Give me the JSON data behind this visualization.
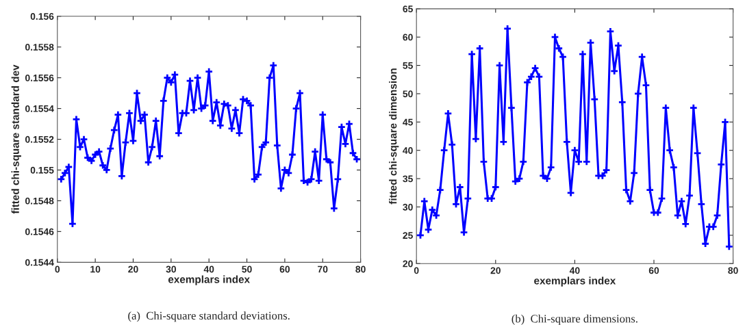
{
  "chart_data": [
    {
      "type": "line",
      "xlabel": "exemplars index",
      "ylabel": "fitted chi-square standard dev",
      "annotations": [
        "(a)  Chi-square standard deviations."
      ],
      "marker": "cross",
      "line_style": "solid",
      "grid": false,
      "legend": false,
      "x": [
        1,
        2,
        3,
        4,
        5,
        6,
        7,
        8,
        9,
        10,
        11,
        12,
        13,
        14,
        15,
        16,
        17,
        18,
        19,
        20,
        21,
        22,
        23,
        24,
        25,
        26,
        27,
        28,
        29,
        30,
        31,
        32,
        33,
        34,
        35,
        36,
        37,
        38,
        39,
        40,
        41,
        42,
        43,
        44,
        45,
        46,
        47,
        48,
        49,
        50,
        51,
        52,
        53,
        54,
        55,
        56,
        57,
        58,
        59,
        60,
        61,
        62,
        63,
        64,
        65,
        66,
        67,
        68,
        69,
        70,
        71,
        72,
        73,
        74,
        75,
        76,
        77,
        78,
        79
      ],
      "series": [
        {
          "color": "#0000ff",
          "values": [
            0.15494,
            0.15498,
            0.15502,
            0.15465,
            0.15533,
            0.15515,
            0.1552,
            0.15508,
            0.15506,
            0.1551,
            0.15512,
            0.15503,
            0.155,
            0.15514,
            0.15526,
            0.15536,
            0.15496,
            0.15518,
            0.15537,
            0.15519,
            0.1555,
            0.15532,
            0.15536,
            0.15505,
            0.15515,
            0.15532,
            0.15509,
            0.15545,
            0.1556,
            0.15557,
            0.15562,
            0.15524,
            0.15537,
            0.15537,
            0.15558,
            0.15539,
            0.1556,
            0.1554,
            0.15542,
            0.15564,
            0.15532,
            0.15544,
            0.15529,
            0.15543,
            0.15542,
            0.15527,
            0.15539,
            0.15524,
            0.15546,
            0.15545,
            0.15542,
            0.15494,
            0.15497,
            0.15515,
            0.15518,
            0.1556,
            0.15568,
            0.15516,
            0.15488,
            0.155,
            0.15498,
            0.1551,
            0.1554,
            0.1555,
            0.15493,
            0.15492,
            0.15494,
            0.15512,
            0.15493,
            0.15536,
            0.15507,
            0.15505,
            0.15475,
            0.15494,
            0.15528,
            0.15517,
            0.1553,
            0.15511,
            0.15507
          ]
        }
      ],
      "xlim": [
        0,
        80
      ],
      "xticks": [
        0,
        10,
        20,
        30,
        40,
        50,
        60,
        70,
        80
      ],
      "ylim": [
        0.1544,
        0.156
      ],
      "yticks": [
        0.1544,
        0.1546,
        0.1548,
        0.155,
        0.1552,
        0.1554,
        0.1556,
        0.1558,
        0.156
      ]
    },
    {
      "type": "line",
      "xlabel": "exemplars index",
      "ylabel": "fitted chi-square dimension",
      "annotations": [
        "(b)  Chi-square dimensions."
      ],
      "marker": "cross",
      "line_style": "solid",
      "grid": false,
      "legend": false,
      "x": [
        1,
        2,
        3,
        4,
        5,
        6,
        7,
        8,
        9,
        10,
        11,
        12,
        13,
        14,
        15,
        16,
        17,
        18,
        19,
        20,
        21,
        22,
        23,
        24,
        25,
        26,
        27,
        28,
        29,
        30,
        31,
        32,
        33,
        34,
        35,
        36,
        37,
        38,
        39,
        40,
        41,
        42,
        43,
        44,
        45,
        46,
        47,
        48,
        49,
        50,
        51,
        52,
        53,
        54,
        55,
        56,
        57,
        58,
        59,
        60,
        61,
        62,
        63,
        64,
        65,
        66,
        67,
        68,
        69,
        70,
        71,
        72,
        73,
        74,
        75,
        76,
        77,
        78,
        79
      ],
      "series": [
        {
          "color": "#0000ff",
          "values": [
            25,
            31,
            26,
            29.5,
            28.5,
            33,
            40,
            46.5,
            41,
            30.5,
            33.5,
            25.5,
            31.5,
            57,
            42,
            58,
            38,
            31.5,
            31.5,
            33.5,
            55,
            41.5,
            61.5,
            47.5,
            34.5,
            35,
            38,
            52,
            53,
            54.5,
            53,
            35.5,
            35,
            37,
            60,
            58,
            56.5,
            41.5,
            32.5,
            40,
            38,
            57,
            38,
            59,
            49,
            35.5,
            35.5,
            36.5,
            61,
            54,
            58.5,
            48.5,
            33,
            31,
            36,
            50,
            56.5,
            51.5,
            33,
            29,
            29,
            31.5,
            47.5,
            40,
            37,
            28.5,
            31,
            27,
            32,
            47.5,
            39.5,
            30.5,
            23.5,
            26.5,
            26.5,
            28.5,
            37.5,
            45,
            23
          ]
        }
      ],
      "xlim": [
        0,
        80
      ],
      "xticks": [
        0,
        20,
        40,
        60,
        80
      ],
      "ylim": [
        20,
        65
      ],
      "yticks": [
        20,
        25,
        30,
        35,
        40,
        45,
        50,
        55,
        60,
        65
      ]
    }
  ]
}
